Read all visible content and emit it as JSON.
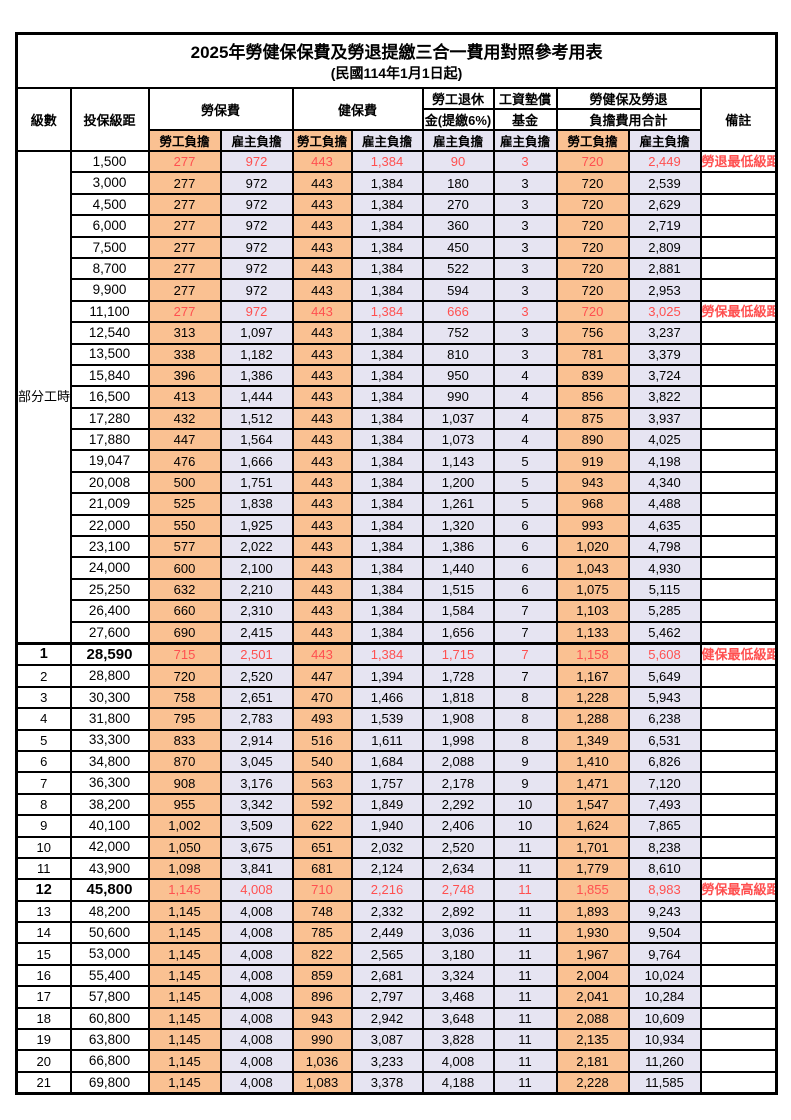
{
  "title": "2025年勞健保保費及勞退提繳三合一費用對照參考用表",
  "subtitle": "(民國114年1月1日起)",
  "header": {
    "level": "級數",
    "salary_bracket": "投保級距",
    "labor_insurance": "勞保費",
    "health_insurance": "健保費",
    "pension_line1": "勞工退休",
    "pension_line2": "金(提繳6%)",
    "wage_fund_line1": "工資墊償",
    "wage_fund_line2": "基金",
    "total_line1": "勞健保及勞退",
    "total_line2": "負擔費用合計",
    "remark": "備註",
    "employee_label": "勞工負擔",
    "employer_label": "雇主負擔"
  },
  "part_time_label": "部分工時",
  "part_time_rowspan": 23,
  "colors": {
    "employee_bg": "#FAC192",
    "employer_bg": "#E6E4F2",
    "highlight_text": "#FF5050",
    "border": "#000000",
    "page_bg": "#FFFFFF"
  },
  "rows": [
    {
      "lv": "",
      "sal": "1,500",
      "li_w": "277",
      "li_e": "972",
      "hi_w": "443",
      "hi_e": "1,384",
      "pen": "90",
      "wf": "3",
      "tot_w": "720",
      "tot_e": "2,449",
      "rm": "勞退最低級距",
      "red": true,
      "big": false
    },
    {
      "lv": "",
      "sal": "3,000",
      "li_w": "277",
      "li_e": "972",
      "hi_w": "443",
      "hi_e": "1,384",
      "pen": "180",
      "wf": "3",
      "tot_w": "720",
      "tot_e": "2,539",
      "rm": "",
      "red": false,
      "big": false
    },
    {
      "lv": "",
      "sal": "4,500",
      "li_w": "277",
      "li_e": "972",
      "hi_w": "443",
      "hi_e": "1,384",
      "pen": "270",
      "wf": "3",
      "tot_w": "720",
      "tot_e": "2,629",
      "rm": "",
      "red": false,
      "big": false
    },
    {
      "lv": "",
      "sal": "6,000",
      "li_w": "277",
      "li_e": "972",
      "hi_w": "443",
      "hi_e": "1,384",
      "pen": "360",
      "wf": "3",
      "tot_w": "720",
      "tot_e": "2,719",
      "rm": "",
      "red": false,
      "big": false
    },
    {
      "lv": "",
      "sal": "7,500",
      "li_w": "277",
      "li_e": "972",
      "hi_w": "443",
      "hi_e": "1,384",
      "pen": "450",
      "wf": "3",
      "tot_w": "720",
      "tot_e": "2,809",
      "rm": "",
      "red": false,
      "big": false
    },
    {
      "lv": "",
      "sal": "8,700",
      "li_w": "277",
      "li_e": "972",
      "hi_w": "443",
      "hi_e": "1,384",
      "pen": "522",
      "wf": "3",
      "tot_w": "720",
      "tot_e": "2,881",
      "rm": "",
      "red": false,
      "big": false
    },
    {
      "lv": "",
      "sal": "9,900",
      "li_w": "277",
      "li_e": "972",
      "hi_w": "443",
      "hi_e": "1,384",
      "pen": "594",
      "wf": "3",
      "tot_w": "720",
      "tot_e": "2,953",
      "rm": "",
      "red": false,
      "big": false
    },
    {
      "lv": "",
      "sal": "11,100",
      "li_w": "277",
      "li_e": "972",
      "hi_w": "443",
      "hi_e": "1,384",
      "pen": "666",
      "wf": "3",
      "tot_w": "720",
      "tot_e": "3,025",
      "rm": "勞保最低級距",
      "red": true,
      "big": false
    },
    {
      "lv": "",
      "sal": "12,540",
      "li_w": "313",
      "li_e": "1,097",
      "hi_w": "443",
      "hi_e": "1,384",
      "pen": "752",
      "wf": "3",
      "tot_w": "756",
      "tot_e": "3,237",
      "rm": "",
      "red": false,
      "big": false
    },
    {
      "lv": "",
      "sal": "13,500",
      "li_w": "338",
      "li_e": "1,182",
      "hi_w": "443",
      "hi_e": "1,384",
      "pen": "810",
      "wf": "3",
      "tot_w": "781",
      "tot_e": "3,379",
      "rm": "",
      "red": false,
      "big": false
    },
    {
      "lv": "",
      "sal": "15,840",
      "li_w": "396",
      "li_e": "1,386",
      "hi_w": "443",
      "hi_e": "1,384",
      "pen": "950",
      "wf": "4",
      "tot_w": "839",
      "tot_e": "3,724",
      "rm": "",
      "red": false,
      "big": false
    },
    {
      "lv": "",
      "sal": "16,500",
      "li_w": "413",
      "li_e": "1,444",
      "hi_w": "443",
      "hi_e": "1,384",
      "pen": "990",
      "wf": "4",
      "tot_w": "856",
      "tot_e": "3,822",
      "rm": "",
      "red": false,
      "big": false
    },
    {
      "lv": "",
      "sal": "17,280",
      "li_w": "432",
      "li_e": "1,512",
      "hi_w": "443",
      "hi_e": "1,384",
      "pen": "1,037",
      "wf": "4",
      "tot_w": "875",
      "tot_e": "3,937",
      "rm": "",
      "red": false,
      "big": false
    },
    {
      "lv": "",
      "sal": "17,880",
      "li_w": "447",
      "li_e": "1,564",
      "hi_w": "443",
      "hi_e": "1,384",
      "pen": "1,073",
      "wf": "4",
      "tot_w": "890",
      "tot_e": "4,025",
      "rm": "",
      "red": false,
      "big": false
    },
    {
      "lv": "",
      "sal": "19,047",
      "li_w": "476",
      "li_e": "1,666",
      "hi_w": "443",
      "hi_e": "1,384",
      "pen": "1,143",
      "wf": "5",
      "tot_w": "919",
      "tot_e": "4,198",
      "rm": "",
      "red": false,
      "big": false
    },
    {
      "lv": "",
      "sal": "20,008",
      "li_w": "500",
      "li_e": "1,751",
      "hi_w": "443",
      "hi_e": "1,384",
      "pen": "1,200",
      "wf": "5",
      "tot_w": "943",
      "tot_e": "4,340",
      "rm": "",
      "red": false,
      "big": false
    },
    {
      "lv": "",
      "sal": "21,009",
      "li_w": "525",
      "li_e": "1,838",
      "hi_w": "443",
      "hi_e": "1,384",
      "pen": "1,261",
      "wf": "5",
      "tot_w": "968",
      "tot_e": "4,488",
      "rm": "",
      "red": false,
      "big": false
    },
    {
      "lv": "",
      "sal": "22,000",
      "li_w": "550",
      "li_e": "1,925",
      "hi_w": "443",
      "hi_e": "1,384",
      "pen": "1,320",
      "wf": "6",
      "tot_w": "993",
      "tot_e": "4,635",
      "rm": "",
      "red": false,
      "big": false
    },
    {
      "lv": "",
      "sal": "23,100",
      "li_w": "577",
      "li_e": "2,022",
      "hi_w": "443",
      "hi_e": "1,384",
      "pen": "1,386",
      "wf": "6",
      "tot_w": "1,020",
      "tot_e": "4,798",
      "rm": "",
      "red": false,
      "big": false
    },
    {
      "lv": "",
      "sal": "24,000",
      "li_w": "600",
      "li_e": "2,100",
      "hi_w": "443",
      "hi_e": "1,384",
      "pen": "1,440",
      "wf": "6",
      "tot_w": "1,043",
      "tot_e": "4,930",
      "rm": "",
      "red": false,
      "big": false
    },
    {
      "lv": "",
      "sal": "25,250",
      "li_w": "632",
      "li_e": "2,210",
      "hi_w": "443",
      "hi_e": "1,384",
      "pen": "1,515",
      "wf": "6",
      "tot_w": "1,075",
      "tot_e": "5,115",
      "rm": "",
      "red": false,
      "big": false
    },
    {
      "lv": "",
      "sal": "26,400",
      "li_w": "660",
      "li_e": "2,310",
      "hi_w": "443",
      "hi_e": "1,384",
      "pen": "1,584",
      "wf": "7",
      "tot_w": "1,103",
      "tot_e": "5,285",
      "rm": "",
      "red": false,
      "big": false
    },
    {
      "lv": "",
      "sal": "27,600",
      "li_w": "690",
      "li_e": "2,415",
      "hi_w": "443",
      "hi_e": "1,384",
      "pen": "1,656",
      "wf": "7",
      "tot_w": "1,133",
      "tot_e": "5,462",
      "rm": "",
      "red": false,
      "big": false
    },
    {
      "lv": "1",
      "sal": "28,590",
      "li_w": "715",
      "li_e": "2,501",
      "hi_w": "443",
      "hi_e": "1,384",
      "pen": "1,715",
      "wf": "7",
      "tot_w": "1,158",
      "tot_e": "5,608",
      "rm": "健保最低級距",
      "red": true,
      "big": true,
      "thick_top": true
    },
    {
      "lv": "2",
      "sal": "28,800",
      "li_w": "720",
      "li_e": "2,520",
      "hi_w": "447",
      "hi_e": "1,394",
      "pen": "1,728",
      "wf": "7",
      "tot_w": "1,167",
      "tot_e": "5,649",
      "rm": "",
      "red": false,
      "big": false
    },
    {
      "lv": "3",
      "sal": "30,300",
      "li_w": "758",
      "li_e": "2,651",
      "hi_w": "470",
      "hi_e": "1,466",
      "pen": "1,818",
      "wf": "8",
      "tot_w": "1,228",
      "tot_e": "5,943",
      "rm": "",
      "red": false,
      "big": false
    },
    {
      "lv": "4",
      "sal": "31,800",
      "li_w": "795",
      "li_e": "2,783",
      "hi_w": "493",
      "hi_e": "1,539",
      "pen": "1,908",
      "wf": "8",
      "tot_w": "1,288",
      "tot_e": "6,238",
      "rm": "",
      "red": false,
      "big": false
    },
    {
      "lv": "5",
      "sal": "33,300",
      "li_w": "833",
      "li_e": "2,914",
      "hi_w": "516",
      "hi_e": "1,611",
      "pen": "1,998",
      "wf": "8",
      "tot_w": "1,349",
      "tot_e": "6,531",
      "rm": "",
      "red": false,
      "big": false
    },
    {
      "lv": "6",
      "sal": "34,800",
      "li_w": "870",
      "li_e": "3,045",
      "hi_w": "540",
      "hi_e": "1,684",
      "pen": "2,088",
      "wf": "9",
      "tot_w": "1,410",
      "tot_e": "6,826",
      "rm": "",
      "red": false,
      "big": false
    },
    {
      "lv": "7",
      "sal": "36,300",
      "li_w": "908",
      "li_e": "3,176",
      "hi_w": "563",
      "hi_e": "1,757",
      "pen": "2,178",
      "wf": "9",
      "tot_w": "1,471",
      "tot_e": "7,120",
      "rm": "",
      "red": false,
      "big": false
    },
    {
      "lv": "8",
      "sal": "38,200",
      "li_w": "955",
      "li_e": "3,342",
      "hi_w": "592",
      "hi_e": "1,849",
      "pen": "2,292",
      "wf": "10",
      "tot_w": "1,547",
      "tot_e": "7,493",
      "rm": "",
      "red": false,
      "big": false
    },
    {
      "lv": "9",
      "sal": "40,100",
      "li_w": "1,002",
      "li_e": "3,509",
      "hi_w": "622",
      "hi_e": "1,940",
      "pen": "2,406",
      "wf": "10",
      "tot_w": "1,624",
      "tot_e": "7,865",
      "rm": "",
      "red": false,
      "big": false
    },
    {
      "lv": "10",
      "sal": "42,000",
      "li_w": "1,050",
      "li_e": "3,675",
      "hi_w": "651",
      "hi_e": "2,032",
      "pen": "2,520",
      "wf": "11",
      "tot_w": "1,701",
      "tot_e": "8,238",
      "rm": "",
      "red": false,
      "big": false
    },
    {
      "lv": "11",
      "sal": "43,900",
      "li_w": "1,098",
      "li_e": "3,841",
      "hi_w": "681",
      "hi_e": "2,124",
      "pen": "2,634",
      "wf": "11",
      "tot_w": "1,779",
      "tot_e": "8,610",
      "rm": "",
      "red": false,
      "big": false
    },
    {
      "lv": "12",
      "sal": "45,800",
      "li_w": "1,145",
      "li_e": "4,008",
      "hi_w": "710",
      "hi_e": "2,216",
      "pen": "2,748",
      "wf": "11",
      "tot_w": "1,855",
      "tot_e": "8,983",
      "rm": "勞保最高級距",
      "red": true,
      "big": true
    },
    {
      "lv": "13",
      "sal": "48,200",
      "li_w": "1,145",
      "li_e": "4,008",
      "hi_w": "748",
      "hi_e": "2,332",
      "pen": "2,892",
      "wf": "11",
      "tot_w": "1,893",
      "tot_e": "9,243",
      "rm": "",
      "red": false,
      "big": false
    },
    {
      "lv": "14",
      "sal": "50,600",
      "li_w": "1,145",
      "li_e": "4,008",
      "hi_w": "785",
      "hi_e": "2,449",
      "pen": "3,036",
      "wf": "11",
      "tot_w": "1,930",
      "tot_e": "9,504",
      "rm": "",
      "red": false,
      "big": false
    },
    {
      "lv": "15",
      "sal": "53,000",
      "li_w": "1,145",
      "li_e": "4,008",
      "hi_w": "822",
      "hi_e": "2,565",
      "pen": "3,180",
      "wf": "11",
      "tot_w": "1,967",
      "tot_e": "9,764",
      "rm": "",
      "red": false,
      "big": false
    },
    {
      "lv": "16",
      "sal": "55,400",
      "li_w": "1,145",
      "li_e": "4,008",
      "hi_w": "859",
      "hi_e": "2,681",
      "pen": "3,324",
      "wf": "11",
      "tot_w": "2,004",
      "tot_e": "10,024",
      "rm": "",
      "red": false,
      "big": false
    },
    {
      "lv": "17",
      "sal": "57,800",
      "li_w": "1,145",
      "li_e": "4,008",
      "hi_w": "896",
      "hi_e": "2,797",
      "pen": "3,468",
      "wf": "11",
      "tot_w": "2,041",
      "tot_e": "10,284",
      "rm": "",
      "red": false,
      "big": false
    },
    {
      "lv": "18",
      "sal": "60,800",
      "li_w": "1,145",
      "li_e": "4,008",
      "hi_w": "943",
      "hi_e": "2,942",
      "pen": "3,648",
      "wf": "11",
      "tot_w": "2,088",
      "tot_e": "10,609",
      "rm": "",
      "red": false,
      "big": false
    },
    {
      "lv": "19",
      "sal": "63,800",
      "li_w": "1,145",
      "li_e": "4,008",
      "hi_w": "990",
      "hi_e": "3,087",
      "pen": "3,828",
      "wf": "11",
      "tot_w": "2,135",
      "tot_e": "10,934",
      "rm": "",
      "red": false,
      "big": false
    },
    {
      "lv": "20",
      "sal": "66,800",
      "li_w": "1,145",
      "li_e": "4,008",
      "hi_w": "1,036",
      "hi_e": "3,233",
      "pen": "4,008",
      "wf": "11",
      "tot_w": "2,181",
      "tot_e": "11,260",
      "rm": "",
      "red": false,
      "big": false
    },
    {
      "lv": "21",
      "sal": "69,800",
      "li_w": "1,145",
      "li_e": "4,008",
      "hi_w": "1,083",
      "hi_e": "3,378",
      "pen": "4,188",
      "wf": "11",
      "tot_w": "2,228",
      "tot_e": "11,585",
      "rm": "",
      "red": false,
      "big": false
    }
  ]
}
